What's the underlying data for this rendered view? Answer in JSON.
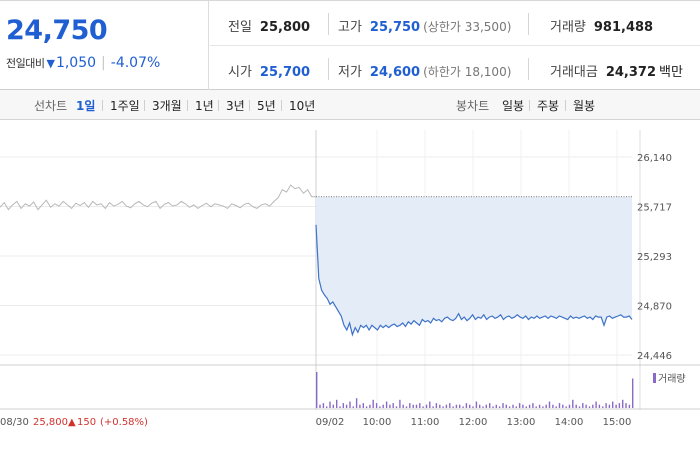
{
  "quote": {
    "price": "24,750",
    "change_label": "전일대비",
    "change_arrow": "▼",
    "change": "1,050",
    "change_pct": "-4.07%"
  },
  "stats": {
    "prev_close_label": "전일",
    "prev_close": "25,800",
    "high_label": "고가",
    "high": "25,750",
    "upper_limit": "(상한가 33,500)",
    "volume_label": "거래량",
    "volume": "981,488",
    "open_label": "시가",
    "open": "25,700",
    "low_label": "저가",
    "low": "24,600",
    "lower_limit": "(하한가 18,100)",
    "amount_label": "거래대금",
    "amount": "24,372",
    "amount_unit": "백만"
  },
  "tabs": {
    "line_label": "선차트",
    "periods": [
      "1일",
      "1주일",
      "3개월",
      "1년",
      "3년",
      "5년",
      "10년"
    ],
    "active_period": "1일",
    "candle_label": "봉차트",
    "candles": [
      "일봉",
      "주봉",
      "월봉"
    ]
  },
  "chart_data": {
    "type": "line",
    "ylim": [
      24446,
      26140
    ],
    "yticks": [
      "26,140",
      "25,717",
      "25,293",
      "24,870",
      "24,446"
    ],
    "prev_day_date": "08/30",
    "prev_day_close": "25,800",
    "prev_day_change_arrow": "▲",
    "prev_day_change": "150",
    "prev_day_change_pct": "(+0.58%)",
    "xticks": [
      "09/02",
      "10:00",
      "11:00",
      "12:00",
      "13:00",
      "14:00",
      "15:00"
    ],
    "reference_price": 25800,
    "volume_legend": "거래량",
    "series": [
      {
        "values": [
          25710,
          25750,
          25690,
          25730,
          25760,
          25700,
          25740,
          25720,
          25755,
          25690,
          25730,
          25770,
          25710,
          25740,
          25720,
          25760,
          25730,
          25700,
          25745,
          25725,
          25750,
          25710,
          25760,
          25730,
          25740,
          25700,
          25750,
          25720,
          25735,
          25760,
          25720,
          25705,
          25740,
          25760,
          25730,
          25715,
          25745,
          25760,
          25700,
          25735,
          25750,
          25720,
          25730,
          25760,
          25740,
          25710,
          25730,
          25700,
          25725,
          25745,
          25715,
          25740,
          25730,
          25720,
          25700,
          25740,
          25725,
          25705,
          25735,
          25745,
          25715,
          25700,
          25730,
          25740,
          25720,
          25760,
          25790,
          25860,
          25840,
          25900,
          25870,
          25880,
          25830,
          25860,
          25800,
          25800
        ]
      },
      {
        "values": [
          25560,
          25100,
          25000,
          24960,
          24930,
          24880,
          24900,
          24860,
          24820,
          24780,
          24700,
          24660,
          24720,
          24620,
          24680,
          24640,
          24700,
          24680,
          24700,
          24660,
          24700,
          24680,
          24660,
          24700,
          24680,
          24700,
          24680,
          24700,
          24710,
          24690,
          24700,
          24720,
          24690,
          24730,
          24710,
          24740,
          24720,
          24700,
          24750,
          24730,
          24740,
          24720,
          24760,
          24740,
          24750,
          24730,
          24760,
          24770,
          24750,
          24740,
          24760,
          24800,
          24750,
          24770,
          24740,
          24760,
          24790,
          24750,
          24770,
          24760,
          24790,
          24750,
          24770,
          24780,
          24760,
          24770,
          24790,
          24750,
          24770,
          24780,
          24760,
          24770,
          24790,
          24770,
          24760,
          24780,
          24750,
          24770,
          24760,
          24780,
          24760,
          24770,
          24780,
          24760,
          24780,
          24770,
          24760,
          24780,
          24770,
          24760,
          24750,
          24780,
          24760,
          24770,
          24760,
          24770,
          24780,
          24760,
          24770,
          24750,
          24780,
          24770,
          24770,
          24700,
          24770,
          24780,
          24760,
          24770,
          24780,
          24790,
          24770,
          24770,
          24780,
          24750
        ]
      }
    ],
    "volume": [
      22,
      2,
      3,
      1,
      4,
      2,
      5,
      1,
      3,
      2,
      4,
      1,
      6,
      2,
      3,
      1,
      2,
      5,
      3,
      1,
      2,
      4,
      2,
      3,
      1,
      5,
      2,
      1,
      3,
      2,
      2,
      3,
      1,
      2,
      4,
      1,
      3,
      2,
      1,
      2,
      3,
      1,
      2,
      2,
      1,
      3,
      2,
      1,
      4,
      2,
      1,
      2,
      3,
      1,
      2,
      1,
      3,
      2,
      1,
      2,
      1,
      3,
      2,
      1,
      2,
      3,
      1,
      2,
      1,
      2,
      4,
      2,
      1,
      3,
      2,
      1,
      2,
      5,
      2,
      1,
      3,
      2,
      1,
      2,
      4,
      2,
      1,
      3,
      2,
      4,
      2,
      3,
      5,
      3,
      2,
      18
    ]
  },
  "colors": {
    "price_blue": "#1f5fd2",
    "up_red": "#d2322d",
    "prev_line": "#b8b8b8",
    "today_line": "#3d72c8",
    "today_fill": "#e4ecf8",
    "volume_bar": "#8a6ac8"
  }
}
